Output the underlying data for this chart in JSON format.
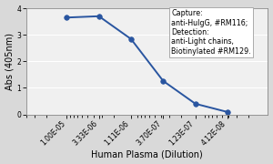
{
  "x_values": [
    1e-05,
    3.33e-06,
    1.11e-06,
    3.7e-07,
    1.23e-07,
    4.12e-08
  ],
  "y_values": [
    3.65,
    3.7,
    2.84,
    1.26,
    0.4,
    0.09
  ],
  "x_label": "Human Plasma (Dilution)",
  "y_label": "Abs (405nm)",
  "y_lim": [
    0,
    4
  ],
  "y_ticks": [
    0,
    1,
    2,
    3,
    4
  ],
  "line_color": "#2955a0",
  "marker": "o",
  "marker_color": "#2955a0",
  "marker_size": 4,
  "line_width": 1.4,
  "background_color": "#d9d9d9",
  "plot_bg_color": "#f0f0f0",
  "legend_title_lines": [
    "Capture:",
    "anti-HuIgG, #RM116;",
    "Detection:",
    "anti-Light chains,",
    "Biotinylated #RM129."
  ],
  "legend_fontsize": 5.8,
  "axis_label_fontsize": 7,
  "tick_fontsize": 5.5,
  "x_tick_labels": [
    "1.00E-05",
    "3.33E-06",
    "1.11E-06",
    "3.70E-07",
    "1.23E-07",
    "4.12E-08"
  ]
}
